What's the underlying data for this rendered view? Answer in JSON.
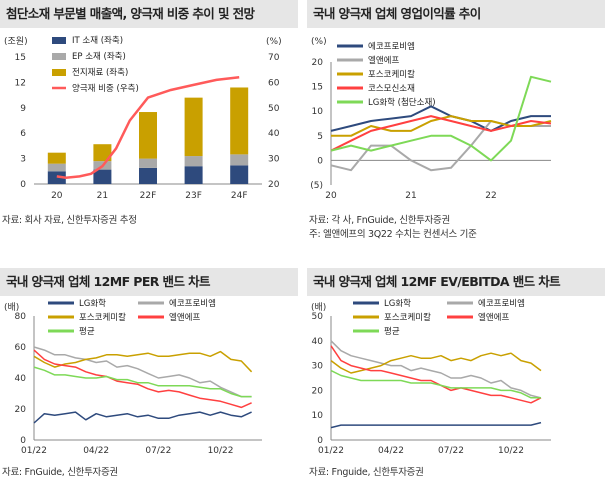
{
  "panels": [
    {
      "title": "첨단소재 부문별 매출액, 양극재 비중 추이 및 전망",
      "source": [
        "자료: 회사 자료, 신한투자증권 추정"
      ],
      "chart_data": {
        "type": "bar",
        "unit_left": "(조원)",
        "unit_right": "(%)",
        "categories": [
          "20",
          "21",
          "22F",
          "23F",
          "24F"
        ],
        "ylim_left": [
          0,
          15
        ],
        "yticks_left": [
          0,
          3,
          6,
          9,
          12,
          15
        ],
        "ylim_right": [
          20,
          70
        ],
        "yticks_right": [
          20,
          30,
          40,
          50,
          60,
          70
        ],
        "stacked_series": [
          {
            "name": "IT 소재 (좌축)",
            "color": "#2e4a7d",
            "values": [
              1.5,
              1.7,
              1.9,
              2.1,
              2.2
            ]
          },
          {
            "name": "EP 소재 (좌축)",
            "color": "#a9a9a9",
            "values": [
              0.9,
              1.0,
              1.1,
              1.2,
              1.3
            ]
          },
          {
            "name": "전지재료 (좌축)",
            "color": "#c9a000",
            "values": [
              1.3,
              2.0,
              5.5,
              6.9,
              7.9
            ]
          }
        ],
        "line_series": {
          "name": "양극재 비중 (우측)",
          "color": "#ff5a5a",
          "x": [
            0,
            0.2,
            0.5,
            0.75,
            1.0,
            1.3,
            1.6,
            2.0,
            2.5,
            3.0,
            3.5,
            4.0
          ],
          "values": [
            23,
            22.5,
            23,
            24,
            27,
            34,
            45,
            54,
            57,
            59,
            61,
            62
          ]
        }
      }
    },
    {
      "title": "국내 양극재 업체 영업이익률 추이",
      "source": [
        "자료: 각 사, FnGuide, 신한투자증권",
        "주: 엘앤에프의 3Q22 수치는 컨센서스 기준"
      ],
      "chart_data": {
        "type": "line",
        "unit_left": "(%)",
        "ylim": [
          -5,
          20
        ],
        "yticks": [
          -5,
          0,
          5,
          10,
          15,
          20
        ],
        "ytick_labels": [
          "(5)",
          "0",
          "5",
          "10",
          "15",
          "20"
        ],
        "x_labels": [
          {
            "label": "20",
            "x": 0
          },
          {
            "label": "21",
            "x": 4
          },
          {
            "label": "22",
            "x": 8
          }
        ],
        "x_range": [
          0,
          11
        ],
        "series": [
          {
            "name": "에코프로비엠",
            "color": "#2e4a7d",
            "x": [
              0,
              1,
              2,
              3,
              4,
              5,
              6,
              7,
              8,
              9,
              10,
              11
            ],
            "values": [
              6,
              7,
              8,
              8.5,
              9,
              11,
              9,
              8,
              6,
              8,
              9,
              9
            ]
          },
          {
            "name": "엘앤에프",
            "color": "#a9a9a9",
            "x": [
              0,
              1,
              2,
              3,
              4,
              5,
              6,
              7,
              8,
              9,
              10,
              11
            ],
            "values": [
              -1,
              -2,
              3,
              3,
              0,
              -2,
              -1.5,
              3,
              8,
              7,
              7,
              7
            ]
          },
          {
            "name": "포스코케미칼",
            "color": "#c9a000",
            "x": [
              0,
              1,
              2,
              3,
              4,
              5,
              6,
              7,
              8,
              9,
              10,
              11
            ],
            "values": [
              5,
              5,
              7,
              6,
              6,
              8,
              9,
              8,
              8,
              7,
              7,
              8
            ]
          },
          {
            "name": "코스모신소재",
            "color": "#ff4040",
            "x": [
              0,
              1,
              2,
              3,
              4,
              5,
              6,
              7,
              8,
              9,
              10,
              11
            ],
            "values": [
              2,
              4,
              6,
              7,
              8,
              9,
              8,
              7,
              6,
              7,
              8,
              7.5
            ]
          },
          {
            "name": "LG화학 (첨단소재)",
            "color": "#7ed957",
            "x": [
              0,
              1,
              2,
              3,
              4,
              5,
              6,
              7,
              8,
              9,
              10,
              11
            ],
            "values": [
              2,
              3,
              2,
              3,
              4,
              5,
              5,
              3,
              0,
              4,
              17,
              16
            ]
          }
        ]
      }
    },
    {
      "title": "국내 양극재 업체 12MF PER 밴드 차트",
      "source": [
        "자료: FnGuide, 신한투자증권"
      ],
      "chart_data": {
        "type": "line",
        "unit_left": "(배)",
        "ylim": [
          0,
          80
        ],
        "yticks": [
          0,
          20,
          40,
          60,
          80
        ],
        "x_labels": [
          {
            "label": "01/22",
            "x": 0
          },
          {
            "label": "04/22",
            "x": 3
          },
          {
            "label": "07/22",
            "x": 6
          },
          {
            "label": "10/22",
            "x": 9
          }
        ],
        "x_range": [
          0,
          11
        ],
        "series": [
          {
            "name": "LG화학",
            "color": "#2e4a7d",
            "x": [
              0,
              0.5,
              1,
              1.5,
              2,
              2.5,
              3,
              3.5,
              4,
              4.5,
              5,
              5.5,
              6,
              6.5,
              7,
              7.5,
              8,
              8.5,
              9,
              9.5,
              10,
              10.5
            ],
            "values": [
              11,
              17,
              16,
              17,
              18,
              13,
              17,
              15,
              16,
              17,
              15,
              16,
              14,
              14,
              16,
              17,
              18,
              16,
              18,
              16,
              15,
              18
            ]
          },
          {
            "name": "에코프로비엠",
            "color": "#a9a9a9",
            "x": [
              0,
              0.5,
              1,
              1.5,
              2,
              2.5,
              3,
              3.5,
              4,
              4.5,
              5,
              5.5,
              6,
              6.5,
              7,
              7.5,
              8,
              8.5,
              9,
              9.5,
              10,
              10.5
            ],
            "values": [
              60,
              58,
              55,
              55,
              53,
              52,
              50,
              51,
              47,
              48,
              46,
              43,
              40,
              41,
              42,
              40,
              37,
              38,
              34,
              31,
              28,
              28
            ]
          },
          {
            "name": "포스코케미칼",
            "color": "#c9a000",
            "x": [
              0,
              0.5,
              1,
              1.5,
              2,
              2.5,
              3,
              3.5,
              4,
              4.5,
              5,
              5.5,
              6,
              6.5,
              7,
              7.5,
              8,
              8.5,
              9,
              9.5,
              10,
              10.5
            ],
            "values": [
              54,
              50,
              47,
              49,
              50,
              52,
              53,
              55,
              55,
              54,
              55,
              56,
              54,
              54,
              55,
              56,
              56,
              54,
              57,
              52,
              51,
              44
            ]
          },
          {
            "name": "엘앤에프",
            "color": "#ff4040",
            "x": [
              0,
              0.5,
              1,
              1.5,
              2,
              2.5,
              3,
              3.5,
              4,
              4.5,
              5,
              5.5,
              6,
              6.5,
              7,
              7.5,
              8,
              8.5,
              9,
              9.5,
              10,
              10.5
            ],
            "values": [
              58,
              52,
              49,
              48,
              47,
              44,
              42,
              41,
              38,
              37,
              36,
              33,
              31,
              32,
              31,
              29,
              27,
              26,
              25,
              23,
              21,
              24
            ]
          },
          {
            "name": "평균",
            "color": "#7ed957",
            "x": [
              0,
              0.5,
              1,
              1.5,
              2,
              2.5,
              3,
              3.5,
              4,
              4.5,
              5,
              5.5,
              6,
              6.5,
              7,
              7.5,
              8,
              8.5,
              9,
              9.5,
              10,
              10.5
            ],
            "values": [
              47,
              45,
              42,
              42,
              41,
              40,
              40,
              41,
              39,
              39,
              37,
              37,
              35,
              35,
              35,
              35,
              34,
              33,
              33,
              30,
              28,
              28
            ]
          }
        ]
      }
    },
    {
      "title": "국내 양극재 업체 12MF EV/EBITDA 밴드 차트",
      "source": [
        "자료: Fnguide, 신한투자증권"
      ],
      "chart_data": {
        "type": "line",
        "unit_left": "(배)",
        "ylim": [
          0,
          50
        ],
        "yticks": [
          0,
          10,
          20,
          30,
          40,
          50
        ],
        "x_labels": [
          {
            "label": "01/22",
            "x": 0
          },
          {
            "label": "04/22",
            "x": 3
          },
          {
            "label": "07/22",
            "x": 6
          },
          {
            "label": "10/22",
            "x": 9
          }
        ],
        "x_range": [
          0,
          11
        ],
        "series": [
          {
            "name": "LG화학",
            "color": "#2e4a7d",
            "x": [
              0,
              0.5,
              1,
              1.5,
              2,
              2.5,
              3,
              3.5,
              4,
              4.5,
              5,
              5.5,
              6,
              6.5,
              7,
              7.5,
              8,
              8.5,
              9,
              9.5,
              10,
              10.5
            ],
            "values": [
              5,
              6,
              6,
              6,
              6,
              6,
              6,
              6,
              6,
              6,
              6,
              6,
              6,
              6,
              6,
              6,
              6,
              6,
              6,
              6,
              6,
              7
            ]
          },
          {
            "name": "에코프로비엠",
            "color": "#a9a9a9",
            "x": [
              0,
              0.5,
              1,
              1.5,
              2,
              2.5,
              3,
              3.5,
              4,
              4.5,
              5,
              5.5,
              6,
              6.5,
              7,
              7.5,
              8,
              8.5,
              9,
              9.5,
              10,
              10.5
            ],
            "values": [
              40,
              36,
              34,
              33,
              32,
              31,
              30,
              30,
              28,
              29,
              28,
              27,
              25,
              25,
              26,
              25,
              23,
              24,
              21,
              20,
              18,
              17
            ]
          },
          {
            "name": "포스코케미칼",
            "color": "#c9a000",
            "x": [
              0,
              0.5,
              1,
              1.5,
              2,
              2.5,
              3,
              3.5,
              4,
              4.5,
              5,
              5.5,
              6,
              6.5,
              7,
              7.5,
              8,
              8.5,
              9,
              9.5,
              10,
              10.5
            ],
            "values": [
              32,
              29,
              27,
              28,
              29,
              30,
              32,
              33,
              34,
              33,
              33,
              34,
              32,
              33,
              32,
              34,
              35,
              34,
              35,
              32,
              31,
              28
            ]
          },
          {
            "name": "엘앤에프",
            "color": "#ff4040",
            "x": [
              0,
              0.5,
              1,
              1.5,
              2,
              2.5,
              3,
              3.5,
              4,
              4.5,
              5,
              5.5,
              6,
              6.5,
              7,
              7.5,
              8,
              8.5,
              9,
              9.5,
              10,
              10.5
            ],
            "values": [
              38,
              32,
              30,
              29,
              28,
              28,
              27,
              26,
              25,
              24,
              24,
              22,
              20,
              21,
              20,
              19,
              18,
              18,
              17,
              16,
              15,
              17
            ]
          },
          {
            "name": "평균",
            "color": "#7ed957",
            "x": [
              0,
              0.5,
              1,
              1.5,
              2,
              2.5,
              3,
              3.5,
              4,
              4.5,
              5,
              5.5,
              6,
              6.5,
              7,
              7.5,
              8,
              8.5,
              9,
              9.5,
              10,
              10.5
            ],
            "values": [
              28,
              26,
              25,
              24,
              24,
              24,
              24,
              24,
              23,
              23,
              23,
              22,
              21,
              21,
              21,
              21,
              21,
              20,
              20,
              19,
              17,
              17
            ]
          }
        ]
      }
    }
  ]
}
